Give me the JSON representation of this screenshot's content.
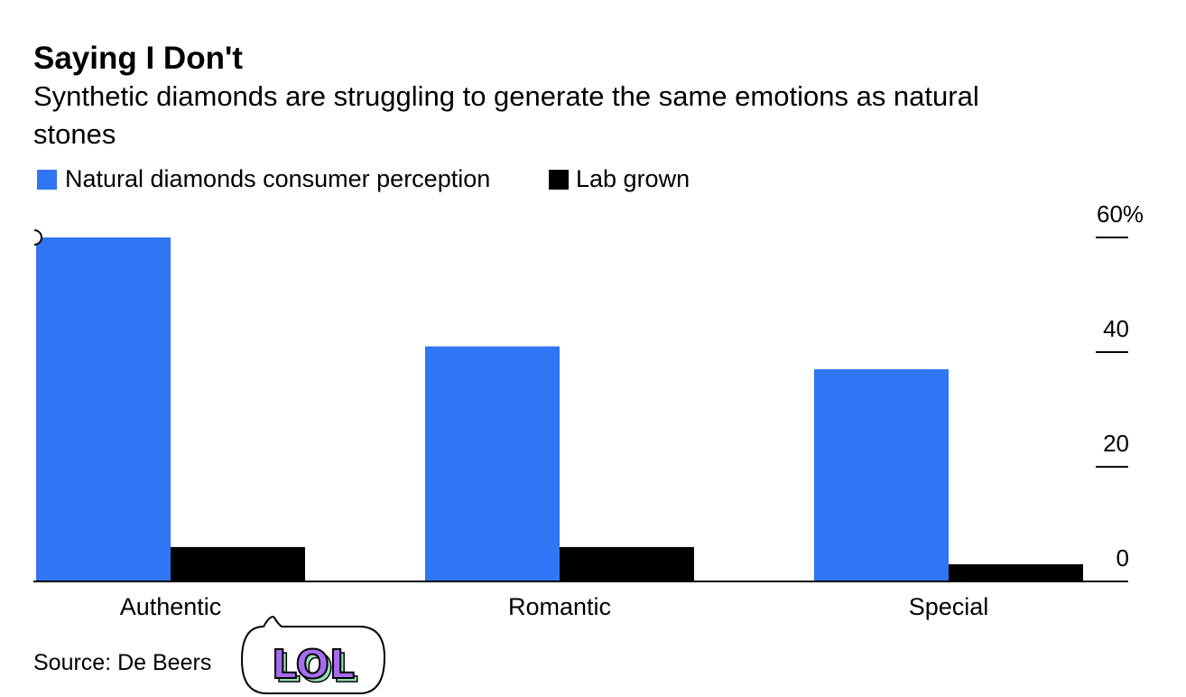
{
  "chart_data": {
    "type": "bar",
    "title": "Saying I Don't",
    "subtitle_lines": [
      "Synthetic diamonds are struggling to generate the same emotions as natural",
      "stones"
    ],
    "categories": [
      "Authentic",
      "Romantic",
      "Special"
    ],
    "series": [
      {
        "name": "Natural diamonds consumer perception",
        "color": "#3075f4",
        "values": [
          60,
          41,
          37
        ]
      },
      {
        "name": "Lab grown",
        "color": "#000000",
        "values": [
          6,
          6,
          3
        ]
      }
    ],
    "ylim": [
      0,
      60
    ],
    "yticks": [
      0,
      20,
      40,
      60
    ],
    "ytick_labels": [
      "0",
      "20",
      "40",
      "60%"
    ],
    "y_axis_side": "right",
    "legend_position": "top-left",
    "grid": false,
    "source": "Source: De Beers"
  },
  "sticker": {
    "text": "LOL",
    "icon": "speech-bubble-sticker"
  }
}
